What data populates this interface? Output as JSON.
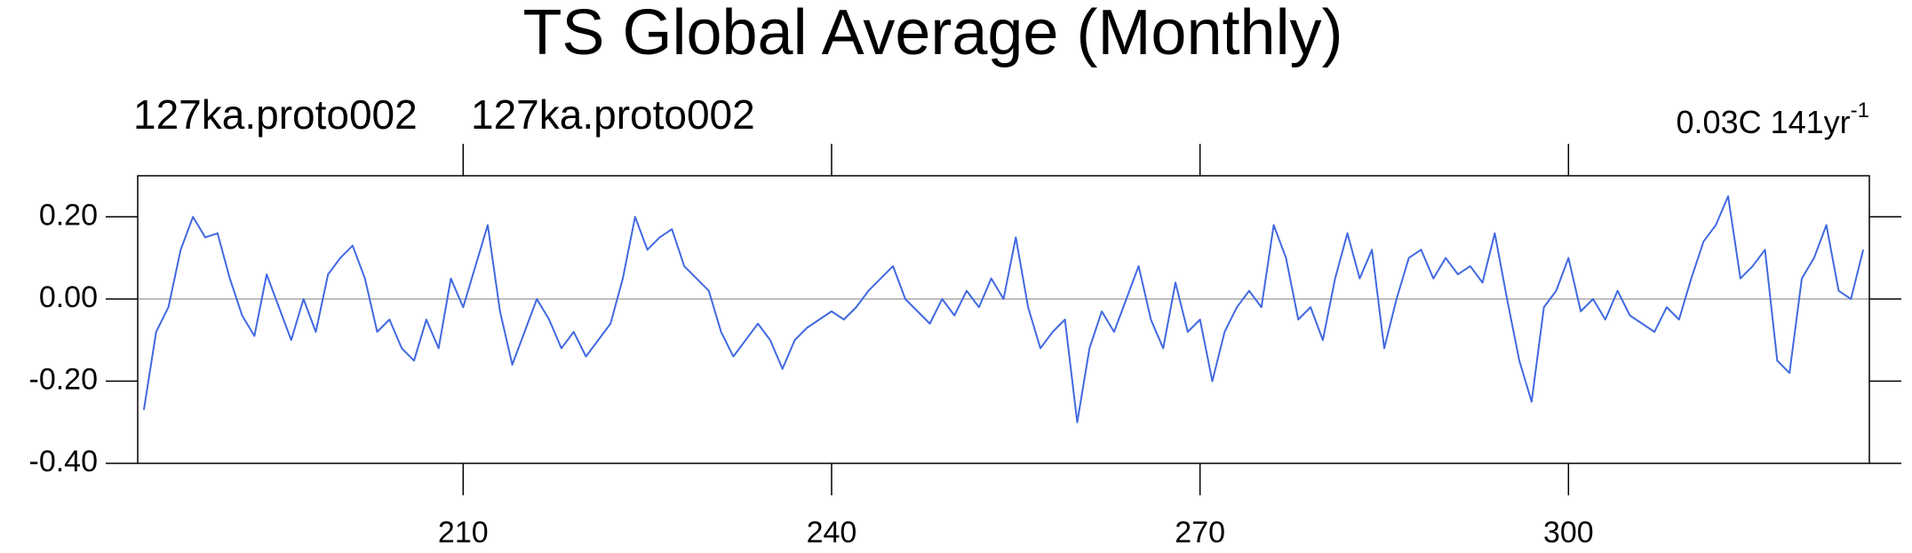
{
  "chart_data": {
    "type": "line",
    "title": "TS Global Average (Monthly)",
    "left_strings": [
      "127ka.proto002",
      "127ka.proto002"
    ],
    "right_string": "0.03C 141yr",
    "right_superscript": "-1",
    "x": [
      184,
      185,
      186,
      187,
      188,
      189,
      190,
      191,
      192,
      193,
      194,
      195,
      196,
      197,
      198,
      199,
      200,
      201,
      202,
      203,
      204,
      205,
      206,
      207,
      208,
      209,
      210,
      211,
      212,
      213,
      214,
      215,
      216,
      217,
      218,
      219,
      220,
      221,
      222,
      223,
      224,
      225,
      226,
      227,
      228,
      229,
      230,
      231,
      232,
      233,
      234,
      235,
      236,
      237,
      238,
      239,
      240,
      241,
      242,
      243,
      244,
      245,
      246,
      247,
      248,
      249,
      250,
      251,
      252,
      253,
      254,
      255,
      256,
      257,
      258,
      259,
      260,
      261,
      262,
      263,
      264,
      265,
      266,
      267,
      268,
      269,
      270,
      271,
      272,
      273,
      274,
      275,
      276,
      277,
      278,
      279,
      280,
      281,
      282,
      283,
      284,
      285,
      286,
      287,
      288,
      289,
      290,
      291,
      292,
      293,
      294,
      295,
      296,
      297,
      298,
      299,
      300,
      301,
      302,
      303,
      304,
      305,
      306,
      307,
      308,
      309,
      310,
      311,
      312,
      313,
      314,
      315,
      316,
      317,
      318,
      319,
      320,
      321,
      322,
      323,
      324
    ],
    "series": [
      {
        "color": "#4169e1",
        "values": [
          -0.27,
          -0.08,
          -0.02,
          0.12,
          0.2,
          0.15,
          0.16,
          0.05,
          -0.04,
          -0.09,
          0.06,
          -0.02,
          -0.1,
          0.0,
          -0.08,
          0.06,
          0.1,
          0.13,
          0.05,
          -0.08,
          -0.05,
          -0.12,
          -0.15,
          -0.05,
          -0.12,
          0.05,
          -0.02,
          0.08,
          0.18,
          -0.03,
          -0.16,
          -0.08,
          0.0,
          -0.05,
          -0.12,
          -0.08,
          -0.14,
          -0.1,
          -0.06,
          0.05,
          0.2,
          0.12,
          0.15,
          0.17,
          0.08,
          0.05,
          0.02,
          -0.08,
          -0.14,
          -0.1,
          -0.06,
          -0.1,
          -0.17,
          -0.1,
          -0.07,
          -0.05,
          -0.03,
          -0.05,
          -0.02,
          0.02,
          0.05,
          0.08,
          0.0,
          -0.03,
          -0.06,
          0.0,
          -0.04,
          0.02,
          -0.02,
          0.05,
          0.0,
          0.15,
          -0.02,
          -0.12,
          -0.08,
          -0.05,
          -0.3,
          -0.12,
          -0.03,
          -0.08,
          0.0,
          0.08,
          -0.05,
          -0.12,
          0.04,
          -0.08,
          -0.05,
          -0.2,
          -0.08,
          -0.02,
          0.02,
          -0.02,
          0.18,
          0.1,
          -0.05,
          -0.02,
          -0.1,
          0.05,
          0.16,
          0.05,
          0.12,
          -0.12,
          0.0,
          0.1,
          0.12,
          0.05,
          0.1,
          0.06,
          0.08,
          0.04,
          0.16,
          0.0,
          -0.15,
          -0.25,
          -0.02,
          0.02,
          0.1,
          -0.03,
          0.0,
          -0.05,
          0.02,
          -0.04,
          -0.06,
          -0.08,
          -0.02,
          -0.05,
          0.05,
          0.14,
          0.18,
          0.25,
          0.05,
          0.08,
          0.12,
          -0.15,
          -0.18,
          0.05,
          0.1,
          0.18,
          0.02,
          0.0,
          0.12
        ]
      }
    ],
    "xlim": [
      183.5,
      324.5
    ],
    "xticks": [
      210,
      240,
      270,
      300
    ],
    "ylim": [
      -0.4,
      0.3
    ],
    "yticks": [
      {
        "value": 0.2,
        "label": "0.20"
      },
      {
        "value": 0.0,
        "label": "0.00"
      },
      {
        "value": -0.2,
        "label": "-0.20"
      },
      {
        "value": -0.4,
        "label": "-0.40"
      }
    ],
    "ref_line": 0
  }
}
